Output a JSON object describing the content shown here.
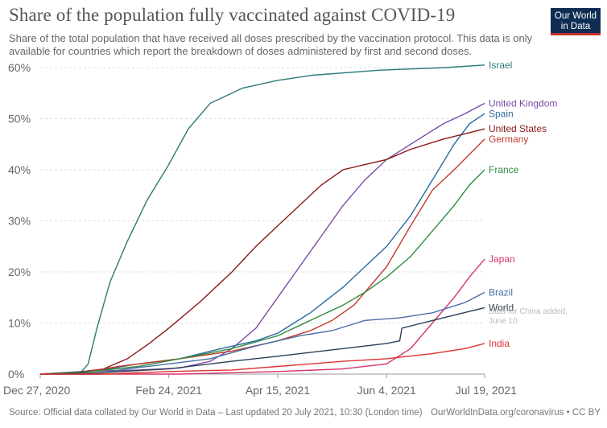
{
  "header": {
    "title": "Share of the population fully vaccinated against COVID-19",
    "subtitle": "Share of the total population that have received all doses prescribed by the vaccination protocol. This data is only available for countries which report the breakdown of doses administered by first and second doses.",
    "logo_line1": "Our World",
    "logo_line2": "in Data"
  },
  "footer": {
    "source": "Source: Official data collated by Our World in Data – Last updated 20 July 2021, 10:30 (London time)",
    "credit": "OurWorldInData.org/coronavirus • CC BY"
  },
  "colors": {
    "logo_bg": "#0f2d52",
    "logo_accent": "#c4302b",
    "grid": "#dddddd"
  },
  "chart_data": {
    "type": "line",
    "x_start": "2020-12-27",
    "x_end": "2021-07-19",
    "x_ticks": [
      {
        "date": "2020-12-27",
        "label": "Dec 27, 2020"
      },
      {
        "date": "2021-02-24",
        "label": "Feb 24, 2021"
      },
      {
        "date": "2021-04-15",
        "label": "Apr 15, 2021"
      },
      {
        "date": "2021-06-04",
        "label": "Jun 4, 2021"
      },
      {
        "date": "2021-07-19",
        "label": "Jul 19, 2021"
      }
    ],
    "ylim": [
      0,
      60
    ],
    "y_ticks": [
      0,
      10,
      20,
      30,
      40,
      50,
      60
    ],
    "y_tick_labels": [
      "0%",
      "10%",
      "20%",
      "30%",
      "40%",
      "50%",
      "60%"
    ],
    "grid": true,
    "annotation": {
      "text_line1": "Data for China added,",
      "text_line2": "June 10",
      "color": "#bbbbbb"
    },
    "series": [
      {
        "name": "Israel",
        "color": "#2b7a78",
        "points": [
          [
            "2020-12-27",
            0
          ],
          [
            "2021-01-14",
            0
          ],
          [
            "2021-01-18",
            2
          ],
          [
            "2021-01-22",
            9
          ],
          [
            "2021-01-28",
            18
          ],
          [
            "2021-02-05",
            26
          ],
          [
            "2021-02-14",
            34
          ],
          [
            "2021-02-24",
            41
          ],
          [
            "2021-03-05",
            48
          ],
          [
            "2021-03-15",
            53
          ],
          [
            "2021-03-30",
            56
          ],
          [
            "2021-04-15",
            57.5
          ],
          [
            "2021-05-01",
            58.5
          ],
          [
            "2021-06-01",
            59.5
          ],
          [
            "2021-07-01",
            60
          ],
          [
            "2021-07-19",
            60.5
          ]
        ]
      },
      {
        "name": "United Kingdom",
        "color": "#7b4aa8",
        "points": [
          [
            "2020-12-27",
            0
          ],
          [
            "2021-01-15",
            0.5
          ],
          [
            "2021-02-10",
            0.8
          ],
          [
            "2021-03-01",
            1.2
          ],
          [
            "2021-03-15",
            2.5
          ],
          [
            "2021-03-25",
            5
          ],
          [
            "2021-04-05",
            9
          ],
          [
            "2021-04-15",
            15
          ],
          [
            "2021-04-25",
            21
          ],
          [
            "2021-05-05",
            27
          ],
          [
            "2021-05-15",
            33
          ],
          [
            "2021-05-25",
            38
          ],
          [
            "2021-06-04",
            42
          ],
          [
            "2021-06-15",
            45
          ],
          [
            "2021-06-30",
            49
          ],
          [
            "2021-07-10",
            51
          ],
          [
            "2021-07-19",
            53
          ]
        ]
      },
      {
        "name": "Spain",
        "color": "#2b6aa0",
        "points": [
          [
            "2020-12-27",
            0
          ],
          [
            "2021-01-20",
            0.5
          ],
          [
            "2021-02-10",
            2
          ],
          [
            "2021-03-01",
            3
          ],
          [
            "2021-03-20",
            5
          ],
          [
            "2021-04-05",
            6.5
          ],
          [
            "2021-04-15",
            8
          ],
          [
            "2021-04-30",
            12
          ],
          [
            "2021-05-15",
            17
          ],
          [
            "2021-05-25",
            21
          ],
          [
            "2021-06-04",
            25
          ],
          [
            "2021-06-15",
            31
          ],
          [
            "2021-06-25",
            38
          ],
          [
            "2021-07-05",
            45
          ],
          [
            "2021-07-12",
            49
          ],
          [
            "2021-07-19",
            51
          ]
        ]
      },
      {
        "name": "United States",
        "color": "#8b1a1a",
        "points": [
          [
            "2020-12-27",
            0
          ],
          [
            "2021-01-10",
            0.2
          ],
          [
            "2021-01-25",
            1
          ],
          [
            "2021-02-05",
            3
          ],
          [
            "2021-02-15",
            6
          ],
          [
            "2021-02-24",
            9
          ],
          [
            "2021-03-10",
            14
          ],
          [
            "2021-03-25",
            20
          ],
          [
            "2021-04-05",
            25
          ],
          [
            "2021-04-15",
            29
          ],
          [
            "2021-04-25",
            33
          ],
          [
            "2021-05-05",
            37
          ],
          [
            "2021-05-15",
            40
          ],
          [
            "2021-05-25",
            41
          ],
          [
            "2021-06-04",
            42
          ],
          [
            "2021-06-15",
            44
          ],
          [
            "2021-06-30",
            46
          ],
          [
            "2021-07-19",
            48
          ]
        ]
      },
      {
        "name": "Germany",
        "color": "#c0392b",
        "points": [
          [
            "2020-12-27",
            0
          ],
          [
            "2021-01-15",
            0.3
          ],
          [
            "2021-02-01",
            1.5
          ],
          [
            "2021-03-01",
            3
          ],
          [
            "2021-03-25",
            4.5
          ],
          [
            "2021-04-15",
            6.5
          ],
          [
            "2021-04-30",
            8.5
          ],
          [
            "2021-05-10",
            10.5
          ],
          [
            "2021-05-20",
            13.5
          ],
          [
            "2021-06-04",
            21
          ],
          [
            "2021-06-15",
            29
          ],
          [
            "2021-06-25",
            36
          ],
          [
            "2021-07-05",
            40
          ],
          [
            "2021-07-12",
            43
          ],
          [
            "2021-07-19",
            46
          ]
        ]
      },
      {
        "name": "France",
        "color": "#2e8b3e",
        "points": [
          [
            "2020-12-27",
            0
          ],
          [
            "2021-01-20",
            0.5
          ],
          [
            "2021-02-10",
            1.5
          ],
          [
            "2021-03-01",
            3
          ],
          [
            "2021-03-25",
            5
          ],
          [
            "2021-04-15",
            7.5
          ],
          [
            "2021-04-30",
            10.5
          ],
          [
            "2021-05-15",
            13.5
          ],
          [
            "2021-05-25",
            16
          ],
          [
            "2021-06-04",
            19
          ],
          [
            "2021-06-15",
            23
          ],
          [
            "2021-06-25",
            28
          ],
          [
            "2021-07-05",
            33
          ],
          [
            "2021-07-12",
            37
          ],
          [
            "2021-07-19",
            40
          ]
        ]
      },
      {
        "name": "Japan",
        "color": "#d6336c",
        "points": [
          [
            "2020-12-27",
            0
          ],
          [
            "2021-03-01",
            0
          ],
          [
            "2021-04-15",
            0.5
          ],
          [
            "2021-05-15",
            1
          ],
          [
            "2021-06-04",
            2
          ],
          [
            "2021-06-15",
            5
          ],
          [
            "2021-06-25",
            10
          ],
          [
            "2021-07-05",
            15
          ],
          [
            "2021-07-12",
            19
          ],
          [
            "2021-07-19",
            22.5
          ]
        ]
      },
      {
        "name": "Brazil",
        "color": "#4a6ea8",
        "points": [
          [
            "2020-12-27",
            0
          ],
          [
            "2021-01-20",
            0
          ],
          [
            "2021-02-05",
            1
          ],
          [
            "2021-02-24",
            2
          ],
          [
            "2021-03-15",
            3
          ],
          [
            "2021-04-05",
            5.5
          ],
          [
            "2021-04-25",
            7.5
          ],
          [
            "2021-05-10",
            8.5
          ],
          [
            "2021-05-25",
            10.5
          ],
          [
            "2021-06-10",
            11
          ],
          [
            "2021-06-25",
            12
          ],
          [
            "2021-07-10",
            14
          ],
          [
            "2021-07-19",
            16
          ]
        ]
      },
      {
        "name": "World",
        "color": "#2c3e57",
        "points": [
          [
            "2020-12-27",
            0
          ],
          [
            "2021-01-20",
            0.2
          ],
          [
            "2021-02-24",
            1
          ],
          [
            "2021-03-25",
            2.5
          ],
          [
            "2021-04-15",
            3.5
          ],
          [
            "2021-05-15",
            5
          ],
          [
            "2021-06-04",
            6
          ],
          [
            "2021-06-10",
            6.5
          ],
          [
            "2021-06-11",
            9
          ],
          [
            "2021-06-30",
            11
          ],
          [
            "2021-07-19",
            13
          ]
        ]
      },
      {
        "name": "India",
        "color": "#e03131",
        "points": [
          [
            "2020-12-27",
            0
          ],
          [
            "2021-01-25",
            0
          ],
          [
            "2021-02-24",
            0.5
          ],
          [
            "2021-03-25",
            0.8
          ],
          [
            "2021-04-15",
            1.5
          ],
          [
            "2021-05-15",
            2.5
          ],
          [
            "2021-06-04",
            3
          ],
          [
            "2021-06-25",
            4
          ],
          [
            "2021-07-10",
            5
          ],
          [
            "2021-07-19",
            6
          ]
        ]
      }
    ]
  }
}
